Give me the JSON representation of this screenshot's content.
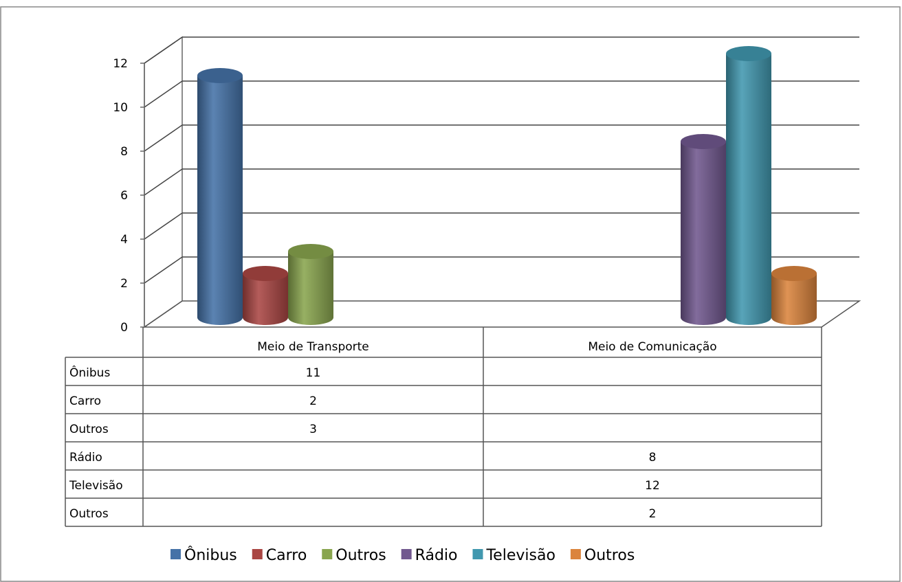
{
  "chart_data": {
    "type": "bar",
    "categories": [
      "Meio de Transporte",
      "Meio de Comunicação"
    ],
    "series": [
      {
        "name": "Ônibus",
        "color": "#4572A7",
        "values": [
          11,
          null
        ]
      },
      {
        "name": "Carro",
        "color": "#AA4643",
        "values": [
          2,
          null
        ]
      },
      {
        "name": "Outros",
        "color": "#89A54E",
        "values": [
          3,
          null
        ]
      },
      {
        "name": "Rádio",
        "color": "#71588F",
        "values": [
          null,
          8
        ]
      },
      {
        "name": "Televisão",
        "color": "#4198AF",
        "values": [
          null,
          12
        ]
      },
      {
        "name": "Outros",
        "color": "#DB843D",
        "values": [
          null,
          2
        ]
      }
    ],
    "ylim": [
      0,
      12
    ],
    "yticks": [
      "0",
      "2",
      "4",
      "6",
      "8",
      "10",
      "12"
    ],
    "grid": true,
    "style": "3d-cylinder",
    "data_table": {
      "rows": [
        {
          "label": "Ônibus",
          "cells": [
            "11",
            ""
          ]
        },
        {
          "label": "Carro",
          "cells": [
            "2",
            ""
          ]
        },
        {
          "label": "Outros",
          "cells": [
            "3",
            ""
          ]
        },
        {
          "label": "Rádio",
          "cells": [
            "",
            "8"
          ]
        },
        {
          "label": "Televisão",
          "cells": [
            "",
            "12"
          ]
        },
        {
          "label": "Outros",
          "cells": [
            "",
            "2"
          ]
        }
      ]
    },
    "legend_position": "bottom"
  }
}
